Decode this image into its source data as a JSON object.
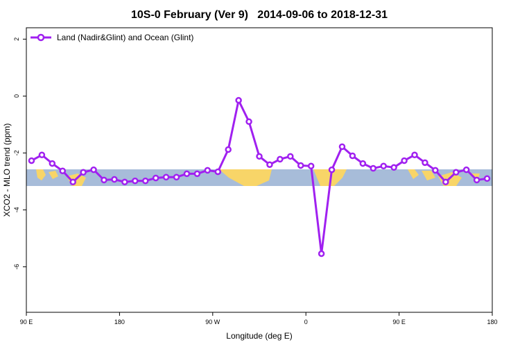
{
  "chart_data": {
    "type": "line",
    "title": "10S-0 February (Ver 9)   2014-09-06 to 2018-12-31",
    "xlabel": "Longitude (deg E)",
    "ylabel": "XCO2 - MLO trend (ppm)",
    "legend": "top-left",
    "x": [
      95,
      105,
      115,
      125,
      135,
      145,
      155,
      165,
      175,
      185,
      195,
      205,
      215,
      225,
      235,
      245,
      255,
      265,
      275,
      285,
      295,
      305,
      315,
      325,
      335,
      345,
      355,
      365,
      375,
      385,
      395,
      405,
      415,
      425,
      435,
      445,
      455,
      465,
      475,
      485,
      495,
      505,
      515,
      525,
      535
    ],
    "series": [
      {
        "name": "Land (Nadir&Glint) and Ocean (Glint)",
        "color": "#a020f0",
        "values": [
          -2.27,
          -2.07,
          -2.37,
          -2.63,
          -3.02,
          -2.68,
          -2.59,
          -2.95,
          -2.93,
          -3.02,
          -2.98,
          -2.98,
          -2.88,
          -2.85,
          -2.85,
          -2.73,
          -2.73,
          -2.61,
          -2.66,
          -1.88,
          -0.15,
          -0.9,
          -2.12,
          -2.41,
          -2.22,
          -2.12,
          -2.44,
          -2.46,
          -5.54,
          -2.59,
          -1.78,
          -2.1,
          -2.37,
          -2.54,
          -2.46,
          -2.51,
          -2.27,
          -2.07,
          -2.34,
          -2.61,
          -3.02,
          -2.68,
          -2.59,
          -2.95,
          -2.9
        ]
      }
    ],
    "xlim": [
      90,
      540
    ],
    "xticks": [
      {
        "value": 90,
        "label": "90 E"
      },
      180,
      {
        "value": 270,
        "label": "90 W"
      },
      {
        "value": 360,
        "label": "0"
      },
      {
        "value": 450,
        "label": "90 E"
      },
      {
        "value": 540,
        "label": "180"
      }
    ],
    "ylim": [
      -7.6,
      2.4
    ],
    "yticks": [
      -6,
      -4,
      -2,
      0,
      2
    ]
  }
}
